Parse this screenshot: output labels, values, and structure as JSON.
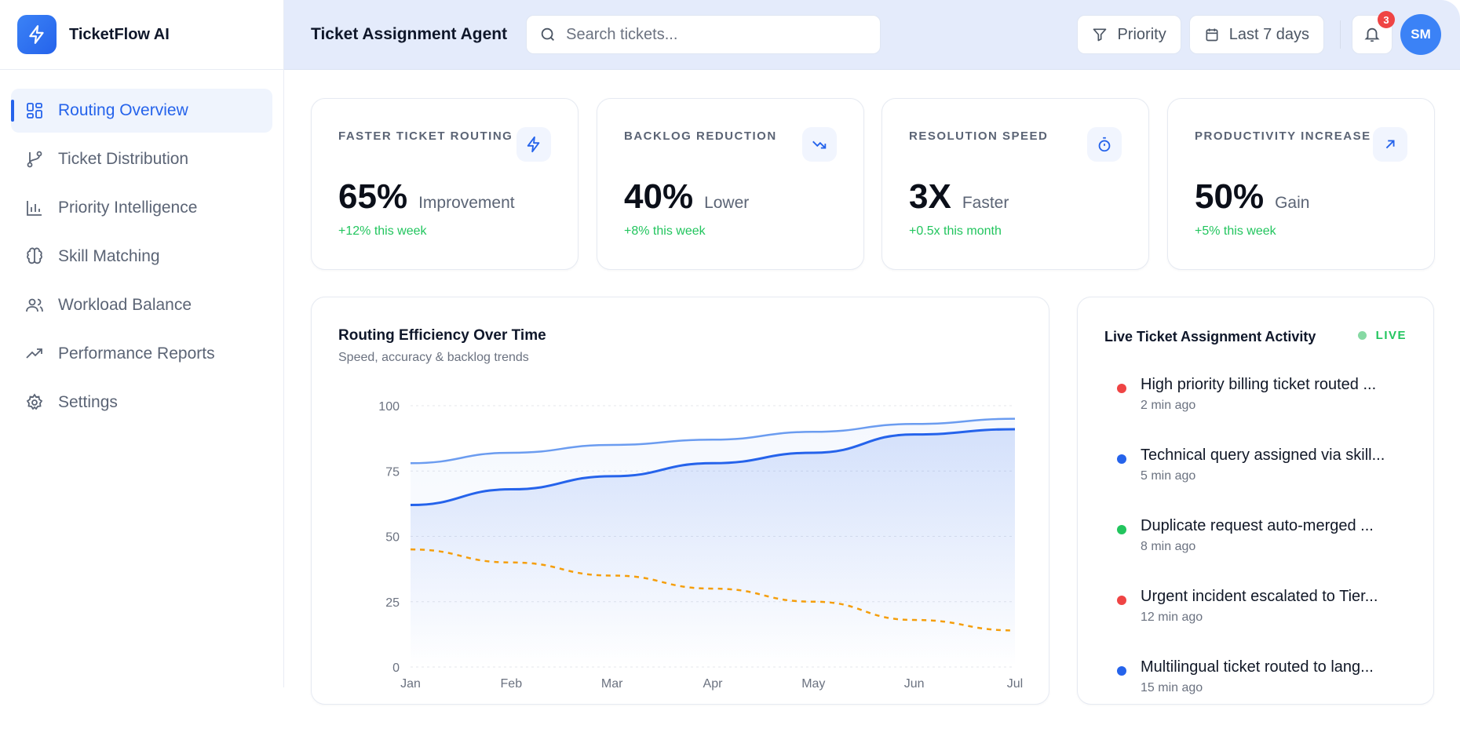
{
  "app": {
    "name": "TicketFlow AI"
  },
  "sidebar": {
    "items": [
      {
        "label": "Routing Overview",
        "icon": "grid-icon",
        "active": true
      },
      {
        "label": "Ticket Distribution",
        "icon": "git-branch-icon"
      },
      {
        "label": "Priority Intelligence",
        "icon": "bar-chart-icon"
      },
      {
        "label": "Skill Matching",
        "icon": "brain-icon"
      },
      {
        "label": "Workload Balance",
        "icon": "users-icon"
      },
      {
        "label": "Performance Reports",
        "icon": "trending-up-icon"
      },
      {
        "label": "Settings",
        "icon": "gear-icon"
      }
    ]
  },
  "header": {
    "title": "Ticket Assignment Agent",
    "search_placeholder": "Search tickets...",
    "priority_label": "Priority",
    "date_label": "Last 7 days",
    "notification_count": "3",
    "avatar_initials": "SM"
  },
  "kpis": [
    {
      "label": "FASTER TICKET ROUTING",
      "value": "65%",
      "unit": "Improvement",
      "delta": "+12% this week",
      "icon": "lightning-icon"
    },
    {
      "label": "BACKLOG REDUCTION",
      "value": "40%",
      "unit": "Lower",
      "delta": "+8% this week",
      "icon": "trending-down-icon"
    },
    {
      "label": "RESOLUTION SPEED",
      "value": "3X",
      "unit": "Faster",
      "delta": "+0.5x this month",
      "icon": "stopwatch-icon"
    },
    {
      "label": "PRODUCTIVITY INCREASE",
      "value": "50%",
      "unit": "Gain",
      "delta": "+5% this week",
      "icon": "arrow-up-right-icon"
    }
  ],
  "chart": {
    "title": "Routing Efficiency Over Time",
    "subtitle": "Speed, accuracy & backlog trends"
  },
  "chart_data": {
    "type": "line",
    "categories": [
      "Jan",
      "Feb",
      "Mar",
      "Apr",
      "May",
      "Jun",
      "Jul"
    ],
    "ylim": [
      0,
      100
    ],
    "yticks": [
      0,
      25,
      50,
      75,
      100
    ],
    "grid": true,
    "series": [
      {
        "values": [
          78,
          82,
          85,
          87,
          90,
          93,
          95
        ],
        "color": "#6b9cf0",
        "style": "solid"
      },
      {
        "values": [
          62,
          68,
          73,
          78,
          82,
          89,
          91
        ],
        "color": "#2563eb",
        "style": "solid",
        "fill": true
      },
      {
        "values": [
          45,
          40,
          35,
          30,
          25,
          18,
          14
        ],
        "color": "#f59e0b",
        "style": "dashed"
      }
    ]
  },
  "activity": {
    "title": "Live Ticket Assignment Activity",
    "live_label": "LIVE",
    "items": [
      {
        "text": "High priority billing ticket routed ...",
        "time": "2 min ago",
        "color": "#ef4444"
      },
      {
        "text": "Technical query assigned via skill...",
        "time": "5 min ago",
        "color": "#2563eb"
      },
      {
        "text": "Duplicate request auto-merged ...",
        "time": "8 min ago",
        "color": "#22c55e"
      },
      {
        "text": "Urgent incident escalated to Tier...",
        "time": "12 min ago",
        "color": "#ef4444"
      },
      {
        "text": "Multilingual ticket routed to lang...",
        "time": "15 min ago",
        "color": "#2563eb"
      }
    ]
  }
}
